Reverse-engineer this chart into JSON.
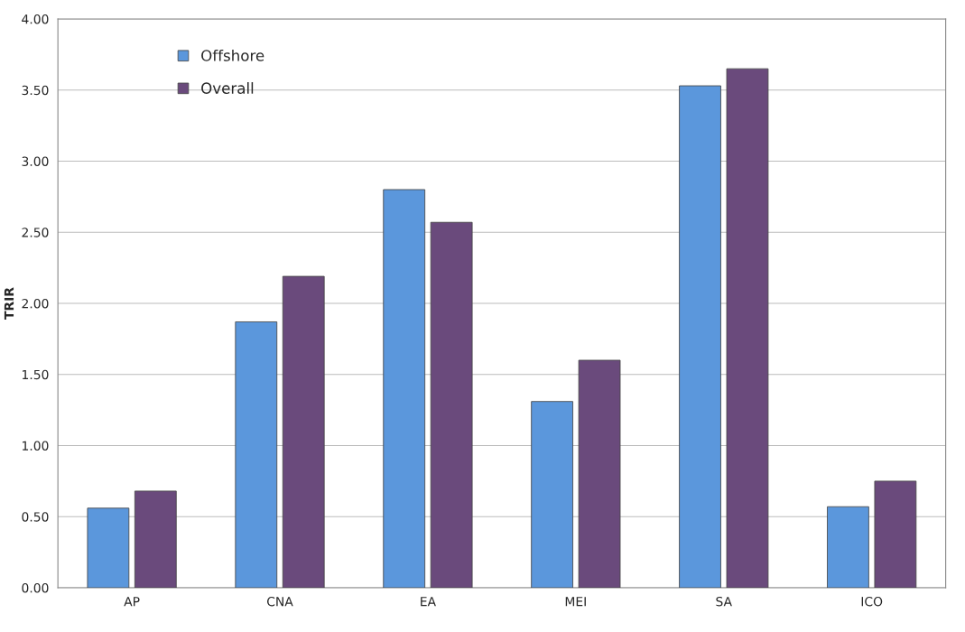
{
  "chart_data": {
    "type": "bar",
    "ylabel": "TRIR",
    "categories": [
      "AP",
      "CNA",
      "EA",
      "MEI",
      "SA",
      "ICO"
    ],
    "series": [
      {
        "name": "Offshore",
        "color": "#5b97dc",
        "values": [
          0.56,
          1.87,
          2.8,
          1.31,
          3.53,
          0.57
        ]
      },
      {
        "name": "Overall",
        "color": "#6a4a7c",
        "values": [
          0.68,
          2.19,
          2.57,
          1.6,
          3.65,
          0.75
        ]
      }
    ],
    "ylim": [
      0,
      4
    ],
    "yticks": [
      {
        "value": 0,
        "label": "0.00"
      },
      {
        "value": 0.5,
        "label": "0.50"
      },
      {
        "value": 1,
        "label": "1.00"
      },
      {
        "value": 1.5,
        "label": "1.50"
      },
      {
        "value": 2,
        "label": "2.00"
      },
      {
        "value": 2.5,
        "label": "2.50"
      },
      {
        "value": 3,
        "label": "3.00"
      },
      {
        "value": 3.5,
        "label": "3.50"
      },
      {
        "value": 4,
        "label": "4.00"
      }
    ],
    "grid": "y",
    "legend": "top left"
  }
}
